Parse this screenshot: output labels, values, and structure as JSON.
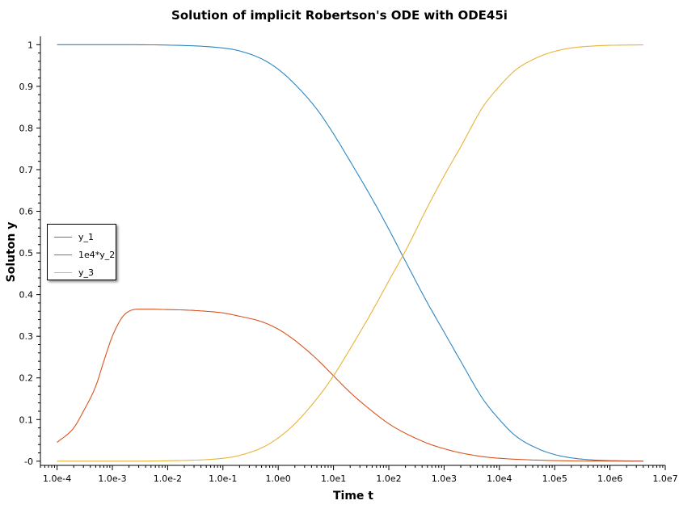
{
  "chart_data": {
    "type": "line",
    "title": "Solution of implicit Robertson's ODE with ODE45i",
    "xlabel": "Time t",
    "ylabel": "Soluton y",
    "x_scale": "log",
    "xlim": [
      5e-05,
      10000000.0
    ],
    "ylim": [
      -0.01,
      1.02
    ],
    "x_ticks": [
      0.0001,
      0.001,
      0.01,
      0.1,
      1,
      10,
      100,
      1000,
      10000,
      100000,
      1000000,
      10000000
    ],
    "x_tick_labels": [
      "1.0e-4",
      "1.0e-3",
      "1.0e-2",
      "1.0e-1",
      "1.0e0",
      "1.0e1",
      "1.0e2",
      "1.0e3",
      "1.0e4",
      "1.0e5",
      "1.0e6",
      "1.0e7"
    ],
    "y_ticks": [
      0,
      0.1,
      0.2,
      0.3,
      0.4,
      0.5,
      0.6,
      0.7,
      0.8,
      0.9,
      1
    ],
    "y_tick_labels": [
      "-0",
      "0.1",
      "0.2",
      "0.3",
      "0.4",
      "0.5",
      "0.6",
      "0.7",
      "0.8",
      "0.9",
      "1"
    ],
    "legend_position": "left-middle",
    "grid": false,
    "series": [
      {
        "name": "y_1",
        "color": "#2e86c1",
        "x": [
          0.0001,
          0.001,
          0.01,
          0.1,
          0.2,
          0.5,
          1,
          2,
          5,
          10,
          20,
          50,
          100,
          200,
          500,
          1000,
          2000,
          5000,
          10000,
          20000,
          50000,
          100000,
          200000,
          500000,
          1000000,
          4000000
        ],
        "y": [
          1.0,
          1.0,
          0.999,
          0.992,
          0.985,
          0.966,
          0.941,
          0.905,
          0.845,
          0.786,
          0.72,
          0.63,
          0.557,
          0.48,
          0.38,
          0.31,
          0.24,
          0.15,
          0.1,
          0.06,
          0.03,
          0.016,
          0.008,
          0.003,
          0.0015,
          0.0005
        ]
      },
      {
        "name": "1e4*y_2",
        "color": "#d9541f",
        "x": [
          0.0001,
          0.0002,
          0.0003,
          0.0005,
          0.0007,
          0.001,
          0.0015,
          0.002,
          0.003,
          0.005,
          0.01,
          0.02,
          0.05,
          0.1,
          0.2,
          0.5,
          1,
          2,
          5,
          10,
          20,
          50,
          100,
          200,
          500,
          1000,
          2000,
          5000,
          10000,
          100000,
          1000000,
          4000000
        ],
        "y": [
          0.045,
          0.08,
          0.12,
          0.18,
          0.24,
          0.3,
          0.345,
          0.36,
          0.365,
          0.365,
          0.364,
          0.363,
          0.36,
          0.356,
          0.348,
          0.335,
          0.317,
          0.29,
          0.245,
          0.205,
          0.165,
          0.12,
          0.09,
          0.067,
          0.043,
          0.03,
          0.02,
          0.011,
          0.007,
          0.0015,
          0.0003,
          0.0001
        ]
      },
      {
        "name": "y_3",
        "color": "#e8b339",
        "x": [
          0.0001,
          0.001,
          0.01,
          0.1,
          0.2,
          0.5,
          1,
          2,
          5,
          10,
          20,
          50,
          100,
          200,
          500,
          1000,
          2000,
          5000,
          10000,
          20000,
          50000,
          100000,
          200000,
          500000,
          1000000,
          4000000
        ],
        "y": [
          0.0,
          0.0,
          0.001,
          0.007,
          0.014,
          0.032,
          0.056,
          0.09,
          0.15,
          0.205,
          0.27,
          0.36,
          0.433,
          0.505,
          0.61,
          0.685,
          0.755,
          0.85,
          0.9,
          0.94,
          0.97,
          0.984,
          0.992,
          0.997,
          0.9985,
          0.9995
        ]
      }
    ]
  }
}
